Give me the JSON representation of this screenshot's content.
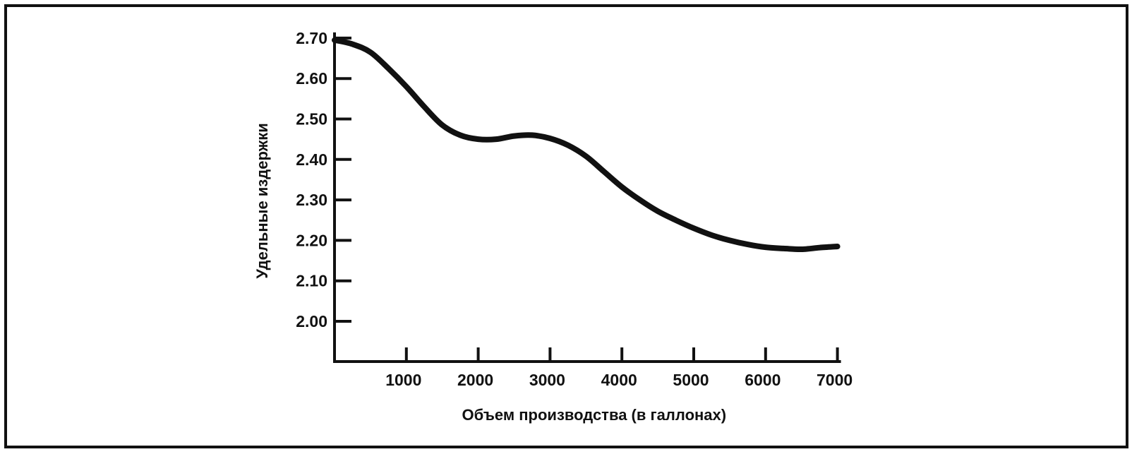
{
  "chart_data": {
    "type": "line",
    "title": "",
    "xlabel": "Объем производства (в галлонах)",
    "ylabel": "Удельные издержки",
    "xlim": [
      0,
      7000
    ],
    "ylim": [
      1.9,
      2.7
    ],
    "x_ticks": [
      1000,
      2000,
      3000,
      4000,
      5000,
      6000,
      7000
    ],
    "x_tick_labels": [
      "1000",
      "2000",
      "3000",
      "4000",
      "5000",
      "6000",
      "7000"
    ],
    "y_ticks": [
      2.0,
      2.1,
      2.2,
      2.3,
      2.4,
      2.5,
      2.6,
      2.7
    ],
    "y_tick_labels": [
      "2.00",
      "2.10",
      "2.20",
      "2.30",
      "2.40",
      "2.50",
      "2.60",
      "2.70"
    ],
    "grid": false,
    "legend": "none",
    "series": [
      {
        "color": "#111111",
        "x": [
          0,
          250,
          500,
          750,
          1000,
          1250,
          1500,
          1750,
          2000,
          2250,
          2500,
          2750,
          3000,
          3250,
          3500,
          3750,
          4000,
          4250,
          4500,
          4750,
          5000,
          5250,
          5500,
          5750,
          6000,
          6250,
          6500,
          6750,
          7000
        ],
        "values": [
          2.695,
          2.685,
          2.665,
          2.625,
          2.58,
          2.53,
          2.485,
          2.46,
          2.45,
          2.45,
          2.458,
          2.46,
          2.452,
          2.435,
          2.408,
          2.37,
          2.332,
          2.3,
          2.272,
          2.25,
          2.23,
          2.213,
          2.2,
          2.19,
          2.183,
          2.18,
          2.178,
          2.182,
          2.185
        ]
      }
    ]
  }
}
